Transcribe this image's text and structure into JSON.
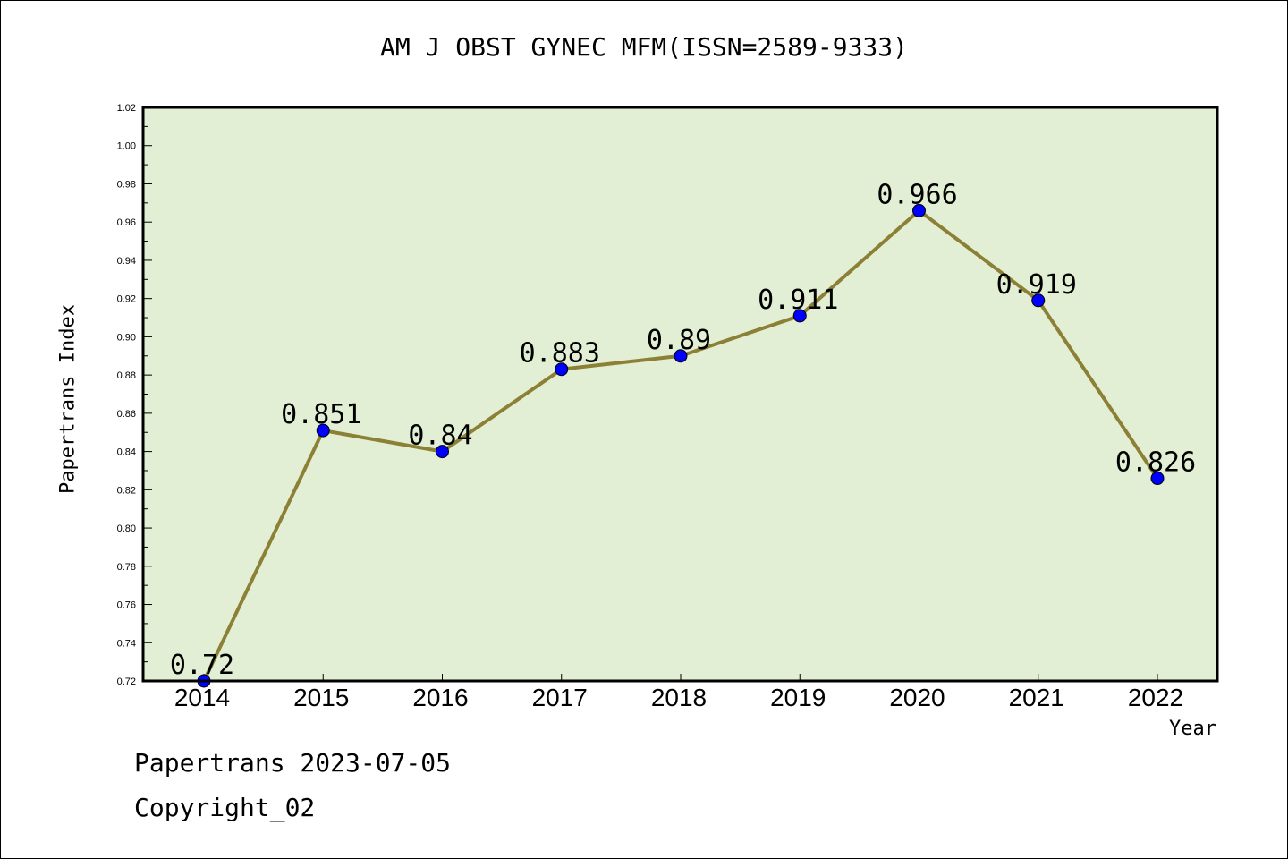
{
  "chart_data": {
    "type": "line",
    "title": "AM J OBST GYNEC MFM(ISSN=2589-9333)",
    "xlabel": "Year",
    "ylabel": "Papertrans Index",
    "categories": [
      "2014",
      "2015",
      "2016",
      "2017",
      "2018",
      "2019",
      "2020",
      "2021",
      "2022"
    ],
    "values": [
      0.72,
      0.851,
      0.84,
      0.883,
      0.89,
      0.911,
      0.966,
      0.919,
      0.826
    ],
    "data_labels": [
      "0.72",
      "0.851",
      "0.84",
      "0.883",
      "0.89",
      "0.911",
      "0.966",
      "0.919",
      "0.826"
    ],
    "ylim": [
      0.72,
      1.02
    ],
    "yticks": [
      "0.72",
      "0.74",
      "0.76",
      "0.78",
      "0.80",
      "0.82",
      "0.84",
      "0.86",
      "0.88",
      "0.90",
      "0.92",
      "0.94",
      "0.96",
      "0.98",
      "1.00",
      "1.02"
    ],
    "grid": false,
    "colors": {
      "plot_background": "#e2efd4",
      "line": "#8b8035",
      "marker": "#0000ff"
    }
  },
  "footer": {
    "line1": "Papertrans 2023-07-05",
    "line2": "Copyright_02"
  }
}
